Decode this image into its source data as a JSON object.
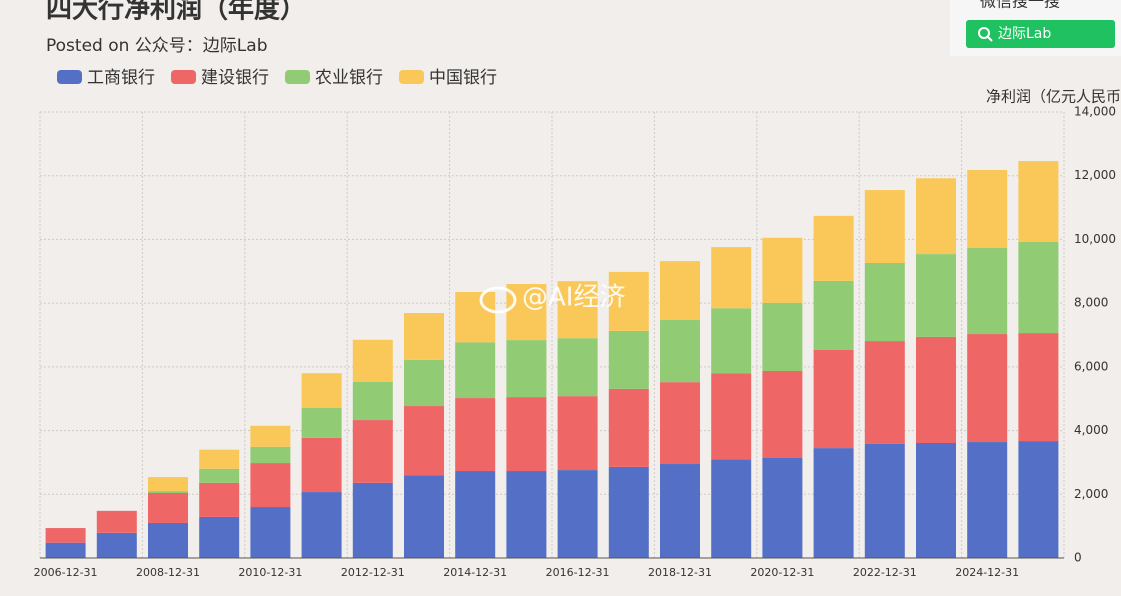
{
  "chart_data": {
    "type": "stacked_bar",
    "title": "四大行净利润（年度）",
    "subtitle": "Posted on 公众号：边际Lab",
    "y_label": "净利润（亿元人民币",
    "annotation": "@AI经济",
    "categories": [
      "2006-12-31",
      null,
      "2008-12-31",
      null,
      "2010-12-31",
      null,
      "2012-12-31",
      null,
      "2014-12-31",
      null,
      "2016-12-31",
      null,
      "2018-12-31",
      null,
      "2020-12-31",
      null,
      "2022-12-31",
      null,
      "2024-12-31",
      null
    ],
    "series": [
      {
        "name": "工商银行",
        "color": "#5470c6",
        "values": [
          480,
          790,
          1100,
          1290,
          1600,
          2070,
          2360,
          2600,
          2730,
          2730,
          2760,
          2860,
          2950,
          3100,
          3140,
          3450,
          3580,
          3610,
          3640,
          3670
        ]
      },
      {
        "name": "建设银行",
        "color": "#ee6666",
        "values": [
          460,
          690,
          940,
          1070,
          1380,
          1700,
          1970,
          2170,
          2290,
          2320,
          2320,
          2450,
          2570,
          2700,
          2730,
          3080,
          3230,
          3330,
          3390,
          3390
        ]
      },
      {
        "name": "农业银行",
        "color": "#91cc75",
        "values": [
          0,
          0,
          60,
          440,
          510,
          940,
          1200,
          1450,
          1750,
          1790,
          1820,
          1820,
          1950,
          2040,
          2140,
          2170,
          2450,
          2600,
          2700,
          2860
        ]
      },
      {
        "name": "中国银行",
        "color": "#fac858",
        "values": [
          0,
          0,
          440,
          600,
          660,
          1090,
          1320,
          1470,
          1580,
          1760,
          1790,
          1850,
          1850,
          1920,
          2040,
          2040,
          2290,
          2380,
          2450,
          2540
        ]
      }
    ],
    "ylim": [
      0,
      14000
    ],
    "yticks": [
      0,
      {
        "value": 2000,
        "label": "2,000"
      },
      {
        "value": 4000,
        "label": "4,000"
      },
      {
        "value": 6000,
        "label": "6,000"
      },
      {
        "value": 8000,
        "label": "8,000"
      },
      {
        "value": 10000,
        "label": "10,000"
      },
      {
        "value": 12000,
        "label": "12,000"
      },
      {
        "value": 14000,
        "label": "14,000"
      }
    ],
    "grid": true,
    "legend": "top-left"
  },
  "widget": {
    "search_hint": "微信搜一搜",
    "button": "边际Lab"
  }
}
